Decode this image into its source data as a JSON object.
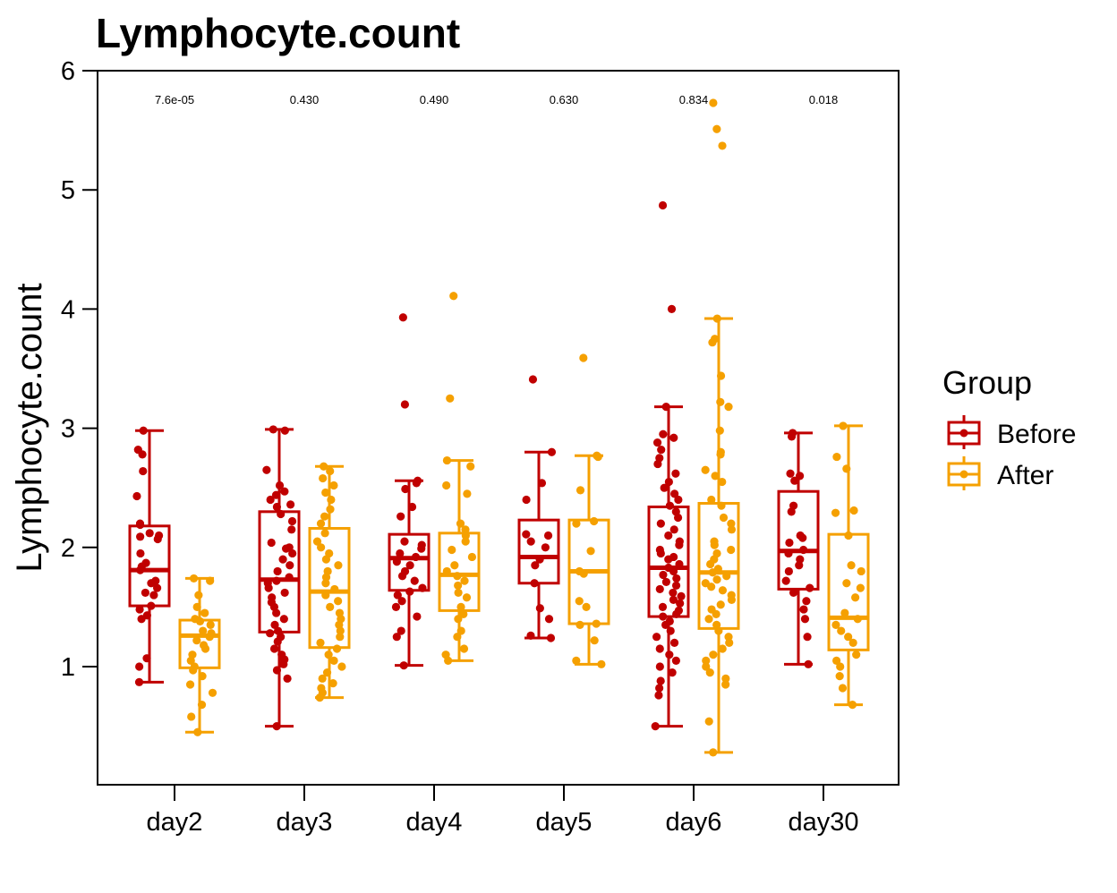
{
  "chart_data": {
    "type": "boxplot",
    "title": "Lymphocyte.count",
    "xlabel": "",
    "ylabel": "Lymphocyte.count",
    "ylim": [
      0,
      6
    ],
    "yticks": [
      1,
      2,
      3,
      4,
      5,
      6
    ],
    "categories": [
      "day2",
      "day3",
      "day4",
      "day5",
      "day6",
      "day30"
    ],
    "p_values": [
      "7.6e-05",
      "0.430",
      "0.490",
      "0.630",
      "0.834",
      "0.018"
    ],
    "legend": {
      "title": "Group",
      "position": "right",
      "entries": [
        "Before",
        "After"
      ]
    },
    "colors": {
      "Before": "#C00000",
      "After": "#F5A000"
    },
    "series": [
      {
        "name": "Before",
        "boxes": [
          {
            "min": 0.87,
            "q1": 1.51,
            "median": 1.81,
            "q3": 2.18,
            "max": 2.98,
            "points": [
              2.98,
              2.82,
              2.78,
              2.64,
              2.43,
              2.2,
              2.19,
              2.12,
              2.1,
              2.09,
              2.07,
              1.95,
              1.87,
              1.84,
              1.81,
              1.72,
              1.7,
              1.66,
              1.62,
              1.6,
              1.51,
              1.48,
              1.43,
              1.4,
              1.07,
              1.0,
              0.87
            ]
          },
          {
            "min": 0.5,
            "q1": 1.29,
            "median": 1.73,
            "q3": 2.3,
            "max": 2.99,
            "points": [
              2.99,
              2.98,
              2.65,
              2.52,
              2.47,
              2.44,
              2.4,
              2.36,
              2.34,
              2.28,
              2.22,
              2.15,
              2.04,
              2.0,
              1.99,
              1.95,
              1.9,
              1.85,
              1.8,
              1.75,
              1.72,
              1.7,
              1.66,
              1.62,
              1.58,
              1.54,
              1.5,
              1.45,
              1.4,
              1.35,
              1.3,
              1.28,
              1.25,
              1.21,
              1.15,
              1.1,
              1.06,
              1.02,
              0.97,
              0.9,
              0.5
            ]
          },
          {
            "min": 1.01,
            "q1": 1.64,
            "median": 1.91,
            "q3": 2.11,
            "max": 2.56,
            "points": [
              3.93,
              3.2,
              2.56,
              2.54,
              2.49,
              2.34,
              2.26,
              2.05,
              2.02,
              1.99,
              1.95,
              1.92,
              1.88,
              1.85,
              1.8,
              1.76,
              1.72,
              1.66,
              1.63,
              1.6,
              1.55,
              1.5,
              1.42,
              1.3,
              1.25,
              1.01
            ]
          },
          {
            "min": 1.24,
            "q1": 1.7,
            "median": 1.92,
            "q3": 2.23,
            "max": 2.8,
            "points": [
              3.41,
              2.8,
              2.54,
              2.4,
              2.11,
              2.1,
              2.05,
              2.0,
              1.9,
              1.85,
              1.7,
              1.49,
              1.4,
              1.26,
              1.24
            ]
          },
          {
            "min": 0.5,
            "q1": 1.42,
            "median": 1.83,
            "q3": 2.34,
            "max": 3.18,
            "points": [
              4.87,
              4.0,
              3.18,
              2.95,
              2.92,
              2.88,
              2.82,
              2.75,
              2.7,
              2.62,
              2.55,
              2.5,
              2.45,
              2.4,
              2.35,
              2.3,
              2.25,
              2.2,
              2.15,
              2.1,
              2.05,
              2.02,
              1.98,
              1.95,
              1.92,
              1.9,
              1.86,
              1.83,
              1.8,
              1.77,
              1.74,
              1.71,
              1.68,
              1.65,
              1.62,
              1.59,
              1.56,
              1.53,
              1.5,
              1.47,
              1.44,
              1.42,
              1.38,
              1.35,
              1.3,
              1.25,
              1.2,
              1.15,
              1.1,
              1.05,
              1.0,
              0.95,
              0.88,
              0.82,
              0.76,
              0.5
            ]
          },
          {
            "min": 1.02,
            "q1": 1.65,
            "median": 1.97,
            "q3": 2.47,
            "max": 2.96,
            "points": [
              2.96,
              2.93,
              2.62,
              2.6,
              2.56,
              2.35,
              2.3,
              2.1,
              2.08,
              2.04,
              1.98,
              1.95,
              1.9,
              1.85,
              1.8,
              1.72,
              1.66,
              1.62,
              1.55,
              1.48,
              1.4,
              1.25,
              1.02
            ]
          }
        ]
      },
      {
        "name": "After",
        "boxes": [
          {
            "min": 0.45,
            "q1": 0.99,
            "median": 1.26,
            "q3": 1.39,
            "max": 1.74,
            "points": [
              1.74,
              1.72,
              1.6,
              1.5,
              1.45,
              1.4,
              1.38,
              1.35,
              1.3,
              1.28,
              1.25,
              1.22,
              1.18,
              1.15,
              1.1,
              1.05,
              1.0,
              0.97,
              0.92,
              0.85,
              0.78,
              0.68,
              0.58,
              0.45
            ]
          },
          {
            "min": 0.74,
            "q1": 1.16,
            "median": 1.63,
            "q3": 2.16,
            "max": 2.68,
            "points": [
              2.68,
              2.64,
              2.58,
              2.52,
              2.46,
              2.4,
              2.32,
              2.26,
              2.2,
              2.12,
              2.05,
              2.0,
              1.95,
              1.9,
              1.85,
              1.8,
              1.75,
              1.7,
              1.65,
              1.6,
              1.55,
              1.5,
              1.45,
              1.4,
              1.35,
              1.3,
              1.25,
              1.2,
              1.15,
              1.1,
              1.05,
              1.0,
              0.95,
              0.9,
              0.86,
              0.82,
              0.78,
              0.74
            ]
          },
          {
            "min": 1.05,
            "q1": 1.47,
            "median": 1.77,
            "q3": 2.12,
            "max": 2.73,
            "points": [
              4.11,
              3.25,
              2.73,
              2.68,
              2.52,
              2.45,
              2.2,
              2.15,
              2.1,
              2.05,
              1.98,
              1.92,
              1.85,
              1.8,
              1.76,
              1.72,
              1.68,
              1.62,
              1.58,
              1.5,
              1.44,
              1.4,
              1.3,
              1.25,
              1.15,
              1.1,
              1.05
            ]
          },
          {
            "min": 1.02,
            "q1": 1.36,
            "median": 1.8,
            "q3": 2.23,
            "max": 2.77,
            "points": [
              3.59,
              2.77,
              2.76,
              2.48,
              2.22,
              2.2,
              1.97,
              1.8,
              1.78,
              1.55,
              1.5,
              1.36,
              1.35,
              1.22,
              1.05,
              1.02
            ]
          },
          {
            "min": 0.28,
            "q1": 1.32,
            "median": 1.79,
            "q3": 2.37,
            "max": 3.92,
            "points": [
              5.73,
              5.51,
              5.37,
              3.92,
              3.75,
              3.72,
              3.44,
              3.22,
              3.18,
              2.98,
              2.8,
              2.78,
              2.65,
              2.6,
              2.55,
              2.4,
              2.35,
              2.25,
              2.2,
              2.15,
              2.05,
              2.02,
              1.98,
              1.95,
              1.9,
              1.86,
              1.82,
              1.79,
              1.76,
              1.73,
              1.7,
              1.67,
              1.64,
              1.6,
              1.56,
              1.52,
              1.48,
              1.44,
              1.4,
              1.35,
              1.3,
              1.25,
              1.2,
              1.15,
              1.1,
              1.05,
              1.0,
              0.95,
              0.9,
              0.85,
              0.54,
              0.28
            ]
          },
          {
            "min": 0.68,
            "q1": 1.14,
            "median": 1.41,
            "q3": 2.11,
            "max": 3.02,
            "points": [
              3.02,
              2.76,
              2.66,
              2.31,
              2.29,
              2.1,
              1.85,
              1.8,
              1.7,
              1.66,
              1.58,
              1.45,
              1.4,
              1.35,
              1.3,
              1.25,
              1.2,
              1.1,
              1.05,
              1.0,
              0.92,
              0.82,
              0.68
            ]
          }
        ]
      }
    ]
  }
}
